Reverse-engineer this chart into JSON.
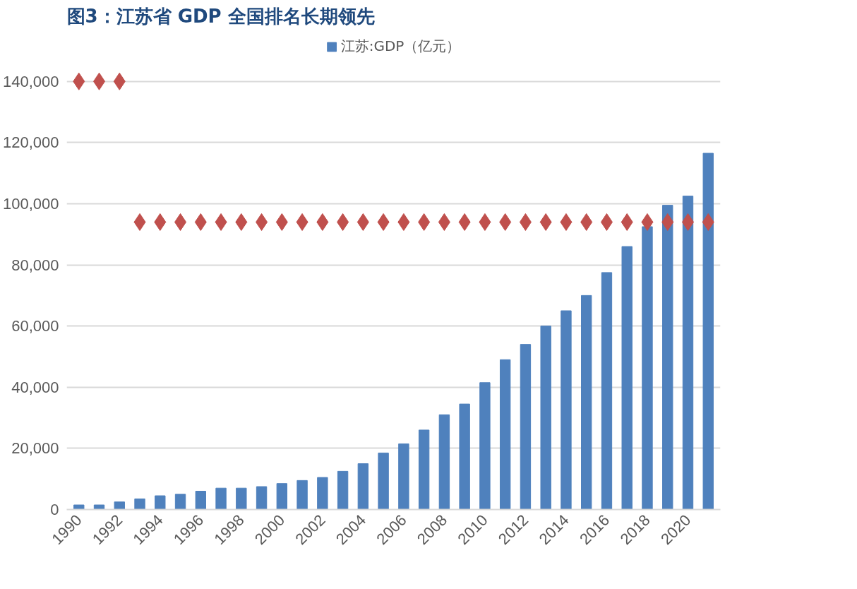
{
  "chart_data": {
    "type": "bar",
    "title": "图3：江苏省 GDP 全国排名长期领先",
    "categories": [
      "1990",
      null,
      "1992",
      null,
      "1994",
      null,
      "1996",
      null,
      "1998",
      null,
      "2000",
      null,
      "2002",
      null,
      "2004",
      null,
      "2006",
      null,
      "2008",
      null,
      "2010",
      null,
      "2012",
      null,
      "2014",
      null,
      "2016",
      null,
      "2018",
      null,
      "2020",
      null
    ],
    "series": [
      {
        "name": "江苏:GDP（亿元）",
        "color": "#4f81bd",
        "values": [
          1500,
          1500,
          2500,
          3500,
          4500,
          5000,
          6000,
          7000,
          7000,
          7500,
          8500,
          9500,
          10500,
          12500,
          15000,
          18500,
          21500,
          26000,
          31000,
          34500,
          41500,
          49000,
          54000,
          60000,
          65000,
          70000,
          77500,
          86000,
          92500,
          99500,
          102500,
          116500
        ]
      },
      {
        "color": "#c0504d",
        "type": "scatter",
        "marker": "diamond",
        "values": [
          140000,
          140000,
          140000,
          94000,
          94000,
          94000,
          94000,
          94000,
          94000,
          94000,
          94000,
          94000,
          94000,
          94000,
          94000,
          94000,
          94000,
          94000,
          94000,
          94000,
          94000,
          94000,
          94000,
          94000,
          94000,
          94000,
          94000,
          94000,
          94000,
          94000,
          94000,
          94000
        ]
      }
    ],
    "ylim": [
      0,
      140000
    ],
    "yticks": [
      0,
      {
        "value": 20000,
        "label": "20,000"
      },
      {
        "value": 40000,
        "label": "40,000"
      },
      {
        "value": 60000,
        "label": "60,000"
      },
      {
        "value": 80000,
        "label": "80,000"
      },
      {
        "value": 100000,
        "label": "100,000"
      },
      {
        "value": 120000,
        "label": "120,000"
      },
      {
        "value": 140000,
        "label": "140,000"
      }
    ],
    "grid": "y",
    "legend": "top"
  }
}
